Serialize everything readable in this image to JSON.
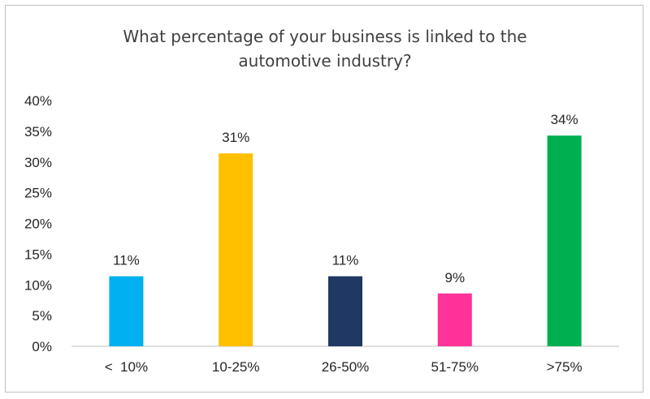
{
  "chart_data": {
    "type": "bar",
    "title": "What percentage of your business is linked to the\nautomotive industry?",
    "categories": [
      "<  10%",
      "10-25%",
      "26-50%",
      "51-75%",
      ">75%"
    ],
    "values": [
      11.4,
      31.4,
      11.4,
      8.6,
      34.3
    ],
    "data_labels": [
      "11%",
      "31%",
      "11%",
      "9%",
      "34%"
    ],
    "colors": [
      "#00b0f0",
      "#ffc000",
      "#1f3864",
      "#ff3399",
      "#00b050"
    ],
    "ylim": [
      0,
      40
    ],
    "yticks": [
      0,
      5,
      10,
      15,
      20,
      25,
      30,
      35,
      40
    ],
    "ytick_labels": [
      "0%",
      "5%",
      "10%",
      "15%",
      "20%",
      "25%",
      "30%",
      "35%",
      "40%"
    ],
    "grid": false,
    "legend": "none"
  }
}
